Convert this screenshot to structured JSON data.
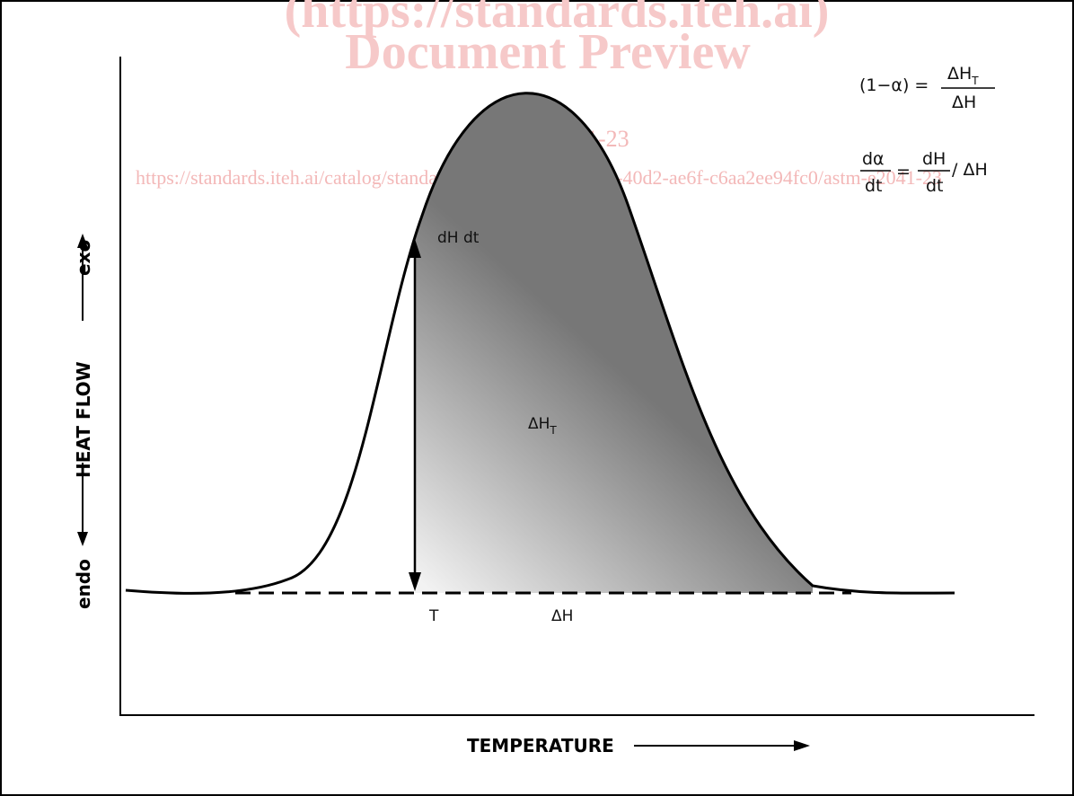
{
  "watermark": {
    "line1": "(https://standards.iteh.ai)",
    "line2": "Document Preview",
    "line3": "ASTM E2041-23",
    "url": "https://standards.iteh.ai/catalog/standards/sist/0acfc1c2-4b46-40d2-ae6f-c6aa2ee94fc0/astm-e2041-23"
  },
  "axes": {
    "y_label_top": "exo",
    "y_label_middle": "HEAT FLOW",
    "y_label_bottom": "endo",
    "x_label": "TEMPERATURE"
  },
  "labels": {
    "dh_dt": "dH dt",
    "dh_t_main": "ΔH",
    "dh_t_sub": "T",
    "t_marker": "T",
    "dh_total": "ΔH"
  },
  "equations": {
    "eq1_left": "(1−α) =",
    "eq1_num_main": "ΔH",
    "eq1_num_sub": "T",
    "eq1_den": "ΔH",
    "eq2_left_num": "dα",
    "eq2_left_den": "dt",
    "eq2_equals": "=",
    "eq2_right_num": "dH",
    "eq2_right_den": "dt",
    "eq2_tail": "/ ΔH"
  },
  "colors": {
    "fill_dark": "#777777",
    "fill_light": "#f2f2f2",
    "line": "#000000"
  }
}
